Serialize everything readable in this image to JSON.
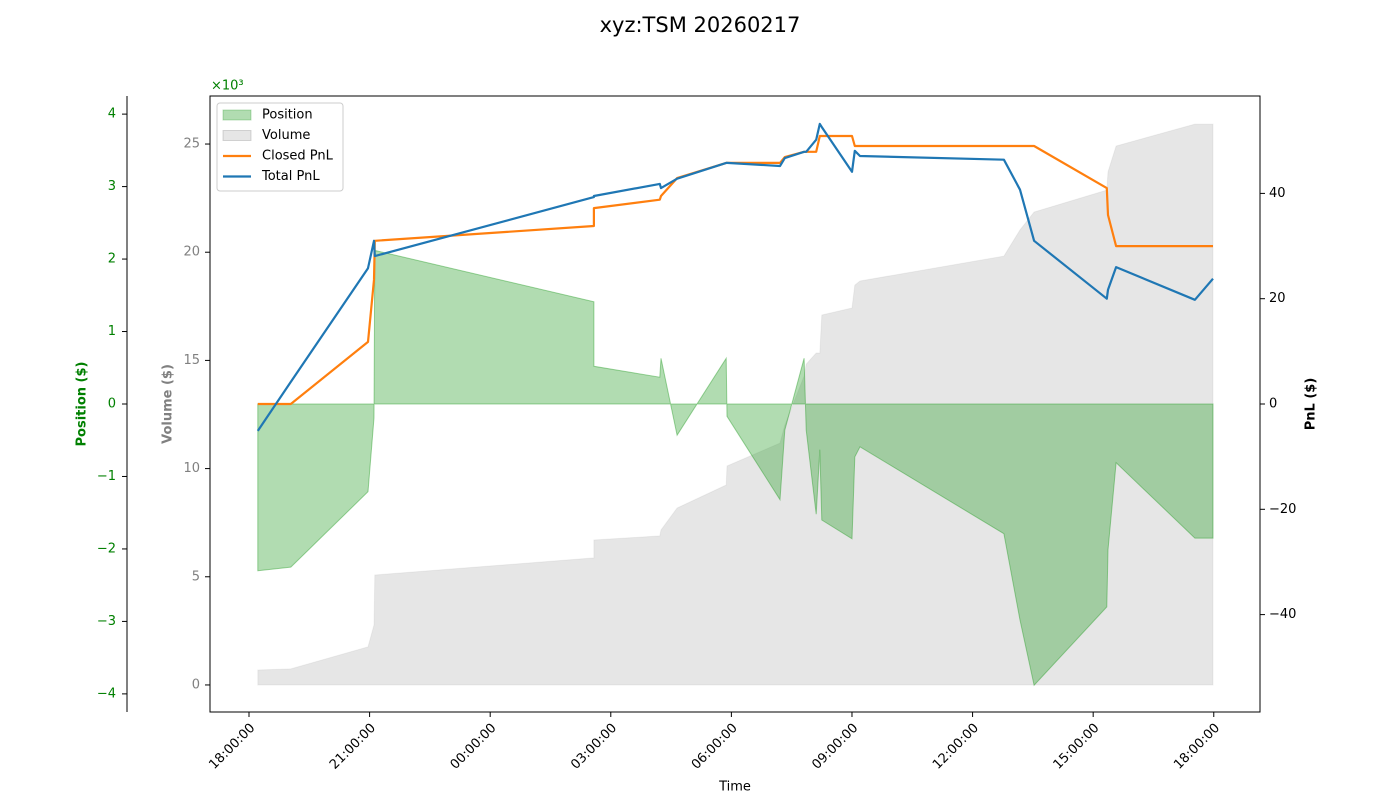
{
  "chart_data": {
    "type": "line",
    "title": "xyz:TSM 20260217",
    "x_label": "Time",
    "y_label": "Volume ($)",
    "y2_label": "PnL ($)",
    "y3_label": "Position ($)",
    "y_offset_label": "×10³",
    "x": [
      0.22,
      1.04,
      2.96,
      3.11,
      3.13,
      8.58,
      8.58,
      10.22,
      10.25,
      10.65,
      11.87,
      11.89,
      13.21,
      13.33,
      13.81,
      13.86,
      14.11,
      14.2,
      14.25,
      15.0,
      15.07,
      15.2,
      18.78,
      19.18,
      19.53,
      21.34,
      21.37,
      21.57,
      23.53,
      23.98
    ],
    "xlim": [
      -0.97,
      25.15
    ],
    "xticks": [
      {
        "value": 0,
        "label": "18:00:00"
      },
      {
        "value": 3,
        "label": "21:00:00"
      },
      {
        "value": 6,
        "label": "00:00:00"
      },
      {
        "value": 9,
        "label": "03:00:00"
      },
      {
        "value": 12,
        "label": "06:00:00"
      },
      {
        "value": 15,
        "label": "09:00:00"
      },
      {
        "value": 18,
        "label": "12:00:00"
      },
      {
        "value": 21,
        "label": "15:00:00"
      },
      {
        "value": 24,
        "label": "18:00:00"
      }
    ],
    "ylim": [
      -1250,
      27220
    ],
    "yticks": [
      {
        "value": 0,
        "label": "0"
      },
      {
        "value": 5000,
        "label": "5"
      },
      {
        "value": 10000,
        "label": "10"
      },
      {
        "value": 15000,
        "label": "15"
      },
      {
        "value": 20000,
        "label": "20"
      },
      {
        "value": 25000,
        "label": "25"
      }
    ],
    "y2lim": [
      -58.5,
      58.5
    ],
    "y2ticks": [
      {
        "value": -40,
        "label": "−40"
      },
      {
        "value": -20,
        "label": "−20"
      },
      0,
      20,
      40
    ],
    "y3lim": [
      -4.25,
      4.25
    ],
    "y3ticks": [
      {
        "value": -4,
        "label": "−4"
      },
      {
        "value": -3,
        "label": "−3"
      },
      {
        "value": -2,
        "label": "−2"
      },
      {
        "value": -1,
        "label": "−1"
      },
      0,
      1,
      2,
      3,
      4
    ],
    "legend": "upper left",
    "series": [
      {
        "name": "Position",
        "kind": "area",
        "axis": "y3",
        "color": "#2ca02c",
        "values": [
          -2.3,
          -2.25,
          -1.21,
          -0.19,
          2.12,
          1.41,
          0.52,
          0.37,
          0.63,
          -0.43,
          0.63,
          -0.17,
          -1.32,
          -0.36,
          0.63,
          -0.36,
          -1.52,
          -0.63,
          -1.6,
          -1.86,
          -0.73,
          -0.59,
          -1.79,
          -2.98,
          -3.88,
          -2.8,
          -2.01,
          -0.81,
          -1.85,
          -1.85
        ]
      },
      {
        "name": "Volume",
        "kind": "area",
        "color": "#808080",
        "values": [
          690,
          740,
          1760,
          2770,
          5080,
          5870,
          6700,
          6890,
          7160,
          8180,
          9240,
          10120,
          11180,
          12010,
          14280,
          14830,
          15340,
          15340,
          17100,
          17420,
          18480,
          18670,
          19820,
          21030,
          21860,
          22870,
          23710,
          24910,
          25920,
          25920
        ]
      },
      {
        "name": "Closed PnL",
        "kind": "line",
        "axis": "y2",
        "color": "#ff7f0e",
        "values": [
          0,
          0,
          11.8,
          23.6,
          31.0,
          33.8,
          37.2,
          38.8,
          39.5,
          42.9,
          45.8,
          45.8,
          45.8,
          46.9,
          47.9,
          47.9,
          47.9,
          50.9,
          50.9,
          50.9,
          49.0,
          49.0,
          49.0,
          49.0,
          49.0,
          41.0,
          35.9,
          30.0,
          30.0,
          30.0
        ]
      },
      {
        "name": "Total PnL",
        "kind": "line",
        "axis": "y2",
        "color": "#1f77b4",
        "values": [
          -5.1,
          4.2,
          25.8,
          31.0,
          28.1,
          39.3,
          39.5,
          41.8,
          41.0,
          42.8,
          45.8,
          45.8,
          45.2,
          46.7,
          47.9,
          47.9,
          50.2,
          53.2,
          52.6,
          44.1,
          48.1,
          47.1,
          46.4,
          40.7,
          31.0,
          20.0,
          21.7,
          26.0,
          19.8,
          23.8
        ]
      }
    ]
  }
}
